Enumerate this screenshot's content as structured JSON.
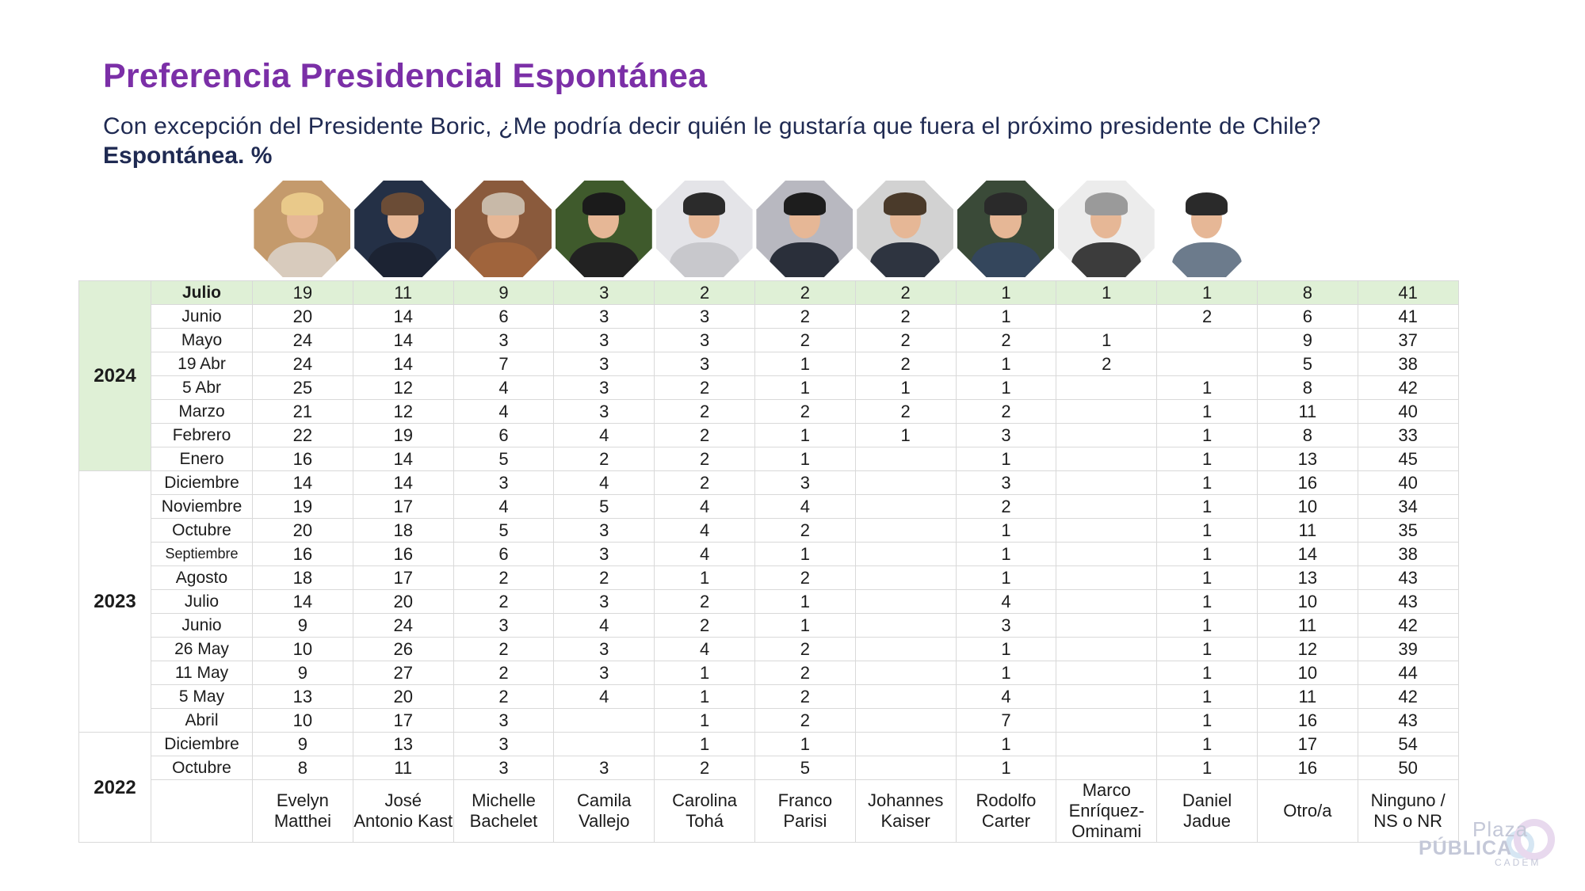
{
  "title": "Preferencia Presidencial Espontánea",
  "subtitle": "Con excepción del Presidente Boric, ¿Me podría decir quién le gustaría que fuera el próximo presidente de Chile?",
  "subtitle_bold": "Espontánea. %",
  "candidates": [
    {
      "name": "Evelyn Matthei",
      "bg": "#c49a6c",
      "hair": "#e9c98a",
      "body": "#d8cbbd"
    },
    {
      "name": "José Antonio Kast",
      "bg": "#243046",
      "hair": "#6b4c36",
      "body": "#1c2333"
    },
    {
      "name": "Michelle Bachelet",
      "bg": "#8a5a3c",
      "hair": "#c8b9a8",
      "body": "#a0643c"
    },
    {
      "name": "Camila Vallejo",
      "bg": "#3f5a2c",
      "hair": "#1b1b1b",
      "body": "#222222"
    },
    {
      "name": "Carolina Tohá",
      "bg": "#e4e4e8",
      "hair": "#2b2b2b",
      "body": "#c8c8cc"
    },
    {
      "name": "Franco Parisi",
      "bg": "#b8b8c0",
      "hair": "#1d1d1d",
      "body": "#2a2f3a"
    },
    {
      "name": "Johannes Kaiser",
      "bg": "#d2d2d2",
      "hair": "#4a3a2a",
      "body": "#2e3440"
    },
    {
      "name": "Rodolfo Carter",
      "bg": "#3a4a38",
      "hair": "#2a2a2a",
      "body": "#34465c"
    },
    {
      "name": "Marco Enríquez-Ominami",
      "bg": "#ececec",
      "hair": "#9a9a9a",
      "body": "#3c3c3c"
    },
    {
      "name": "Daniel Jadue",
      "bg": "#ffffff",
      "hair": "#2a2a2a",
      "body": "#6c7b8c"
    }
  ],
  "extra_columns": [
    "Otro/a",
    "Ninguno / NS o NR"
  ],
  "groups": [
    {
      "year": "2024",
      "rows": [
        {
          "period": "Julio",
          "values": [
            "19",
            "11",
            "9",
            "3",
            "2",
            "2",
            "2",
            "1",
            "1",
            "1",
            "8",
            "41"
          ]
        },
        {
          "period": "Junio",
          "values": [
            "20",
            "14",
            "6",
            "3",
            "3",
            "2",
            "2",
            "1",
            "",
            "2",
            "6",
            "41"
          ]
        },
        {
          "period": "Mayo",
          "values": [
            "24",
            "14",
            "3",
            "3",
            "3",
            "2",
            "2",
            "2",
            "1",
            "",
            "9",
            "37"
          ]
        },
        {
          "period": "19 Abr",
          "values": [
            "24",
            "14",
            "7",
            "3",
            "3",
            "1",
            "2",
            "1",
            "2",
            "",
            "5",
            "38"
          ]
        },
        {
          "period": "5 Abr",
          "values": [
            "25",
            "12",
            "4",
            "3",
            "2",
            "1",
            "1",
            "1",
            "",
            "1",
            "8",
            "42"
          ]
        },
        {
          "period": "Marzo",
          "values": [
            "21",
            "12",
            "4",
            "3",
            "2",
            "2",
            "2",
            "2",
            "",
            "1",
            "11",
            "40"
          ]
        },
        {
          "period": "Febrero",
          "values": [
            "22",
            "19",
            "6",
            "4",
            "2",
            "1",
            "1",
            "3",
            "",
            "1",
            "8",
            "33"
          ]
        },
        {
          "period": "Enero",
          "values": [
            "16",
            "14",
            "5",
            "2",
            "2",
            "1",
            "",
            "1",
            "",
            "1",
            "13",
            "45"
          ]
        }
      ]
    },
    {
      "year": "2023",
      "rows": [
        {
          "period": "Diciembre",
          "values": [
            "14",
            "14",
            "3",
            "4",
            "2",
            "3",
            "",
            "3",
            "",
            "1",
            "16",
            "40"
          ]
        },
        {
          "period": "Noviembre",
          "values": [
            "19",
            "17",
            "4",
            "5",
            "4",
            "4",
            "",
            "2",
            "",
            "1",
            "10",
            "34"
          ]
        },
        {
          "period": "Octubre",
          "values": [
            "20",
            "18",
            "5",
            "3",
            "4",
            "2",
            "",
            "1",
            "",
            "1",
            "11",
            "35"
          ]
        },
        {
          "period": "Septiembre",
          "values": [
            "16",
            "16",
            "6",
            "3",
            "4",
            "1",
            "",
            "1",
            "",
            "1",
            "14",
            "38"
          ]
        },
        {
          "period": "Agosto",
          "values": [
            "18",
            "17",
            "2",
            "2",
            "1",
            "2",
            "",
            "1",
            "",
            "1",
            "13",
            "43"
          ]
        },
        {
          "period": "Julio",
          "values": [
            "14",
            "20",
            "2",
            "3",
            "2",
            "1",
            "",
            "4",
            "",
            "1",
            "10",
            "43"
          ]
        },
        {
          "period": "Junio",
          "values": [
            "9",
            "24",
            "3",
            "4",
            "2",
            "1",
            "",
            "3",
            "",
            "1",
            "11",
            "42"
          ]
        },
        {
          "period": "26 May",
          "values": [
            "10",
            "26",
            "2",
            "3",
            "4",
            "2",
            "",
            "1",
            "",
            "1",
            "12",
            "39"
          ]
        },
        {
          "period": "11 May",
          "values": [
            "9",
            "27",
            "2",
            "3",
            "1",
            "2",
            "",
            "1",
            "",
            "1",
            "10",
            "44"
          ]
        },
        {
          "period": "5 May",
          "values": [
            "13",
            "20",
            "2",
            "4",
            "1",
            "2",
            "",
            "4",
            "",
            "1",
            "11",
            "42"
          ]
        },
        {
          "period": "Abril",
          "values": [
            "10",
            "17",
            "3",
            "",
            "1",
            "2",
            "",
            "7",
            "",
            "1",
            "16",
            "43"
          ]
        }
      ]
    },
    {
      "year": "2022",
      "rows": [
        {
          "period": "Diciembre",
          "values": [
            "9",
            "13",
            "3",
            "",
            "1",
            "1",
            "",
            "1",
            "",
            "1",
            "17",
            "54"
          ]
        },
        {
          "period": "Octubre",
          "values": [
            "8",
            "11",
            "3",
            "3",
            "2",
            "5",
            "",
            "1",
            "",
            "1",
            "16",
            "50"
          ]
        }
      ]
    }
  ],
  "logo": {
    "top": "Plaza",
    "middle": "PÚBLICA",
    "bottom": "CADEM"
  }
}
